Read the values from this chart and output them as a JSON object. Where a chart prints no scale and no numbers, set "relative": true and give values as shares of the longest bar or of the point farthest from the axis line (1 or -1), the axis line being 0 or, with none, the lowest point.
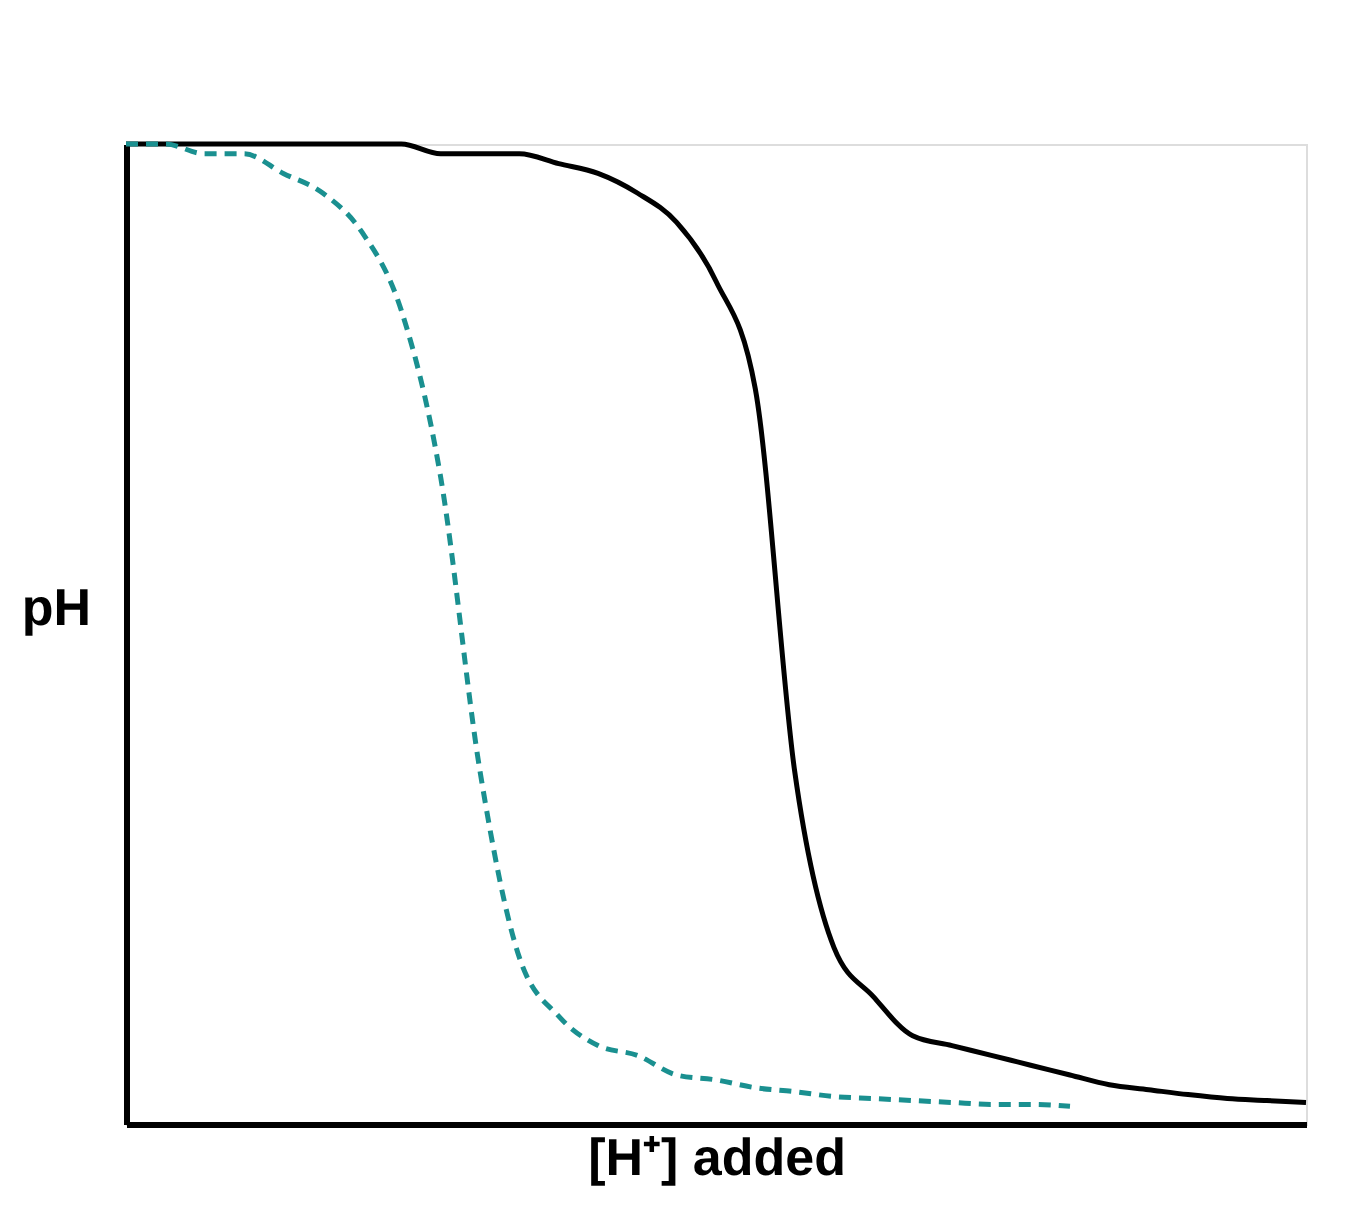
{
  "chart_data": {
    "type": "line",
    "relative": true,
    "xlabel": "[H⁺] added",
    "ylabel": "pH",
    "grid": false,
    "tick_labels": false,
    "marker": "none",
    "categories": [
      null,
      null,
      null,
      null,
      null,
      null,
      null,
      null,
      null,
      null,
      null,
      null,
      null,
      null,
      null,
      null,
      null,
      null,
      null,
      null,
      null,
      null,
      null,
      null,
      null,
      null,
      null,
      null,
      null,
      null,
      null
    ],
    "series": [
      {
        "color": "#000000",
        "line_style": "solid",
        "values": [
          1.0,
          1.0,
          1.0,
          1.0,
          1.0,
          1.0,
          1.0,
          1.0,
          0.99,
          0.99,
          0.99,
          0.98,
          0.97,
          0.95,
          0.92,
          0.86,
          0.75,
          0.36,
          0.18,
          0.13,
          0.09,
          0.08,
          0.07,
          0.06,
          0.05,
          0.04,
          0.035,
          0.03,
          0.026,
          0.024,
          0.022
        ]
      },
      {
        "color": "#1a9090",
        "line_style": "dashed",
        "values": [
          1.0,
          1.0,
          0.99,
          0.99,
          0.97,
          0.95,
          0.91,
          0.83,
          0.66,
          0.36,
          0.17,
          0.11,
          0.08,
          0.07,
          0.05,
          0.045,
          0.037,
          0.033,
          0.028,
          0.026,
          0.024,
          0.022,
          0.02,
          0.02,
          0.018,
          null,
          null,
          null,
          null,
          null,
          null
        ]
      }
    ]
  }
}
